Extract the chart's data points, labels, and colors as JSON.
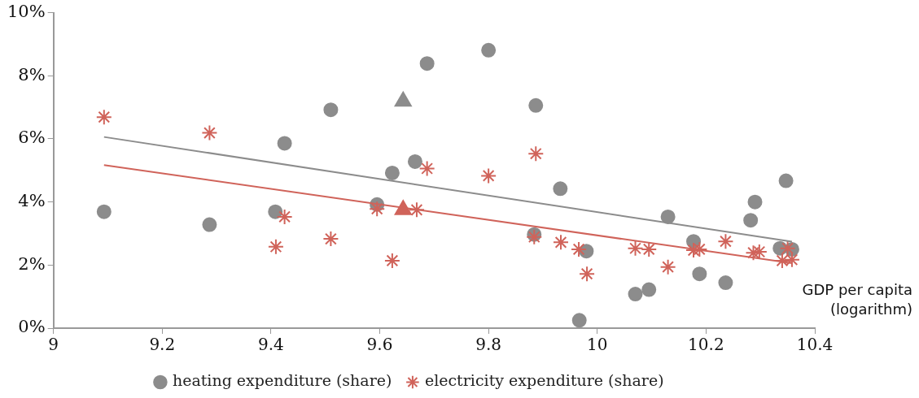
{
  "chart_data": {
    "type": "scatter",
    "xlabel": "GDP per capita (logarithm)",
    "xlim": [
      9,
      10.4
    ],
    "xticks": [
      9,
      9.2,
      9.4,
      9.6,
      9.8,
      10,
      10.2,
      10.4
    ],
    "ylim": [
      0,
      10
    ],
    "yticks": [
      {
        "value": 0,
        "label": "0%"
      },
      {
        "value": 2,
        "label": "2%"
      },
      {
        "value": 4,
        "label": "4%"
      },
      {
        "value": 6,
        "label": "6%"
      },
      {
        "value": 8,
        "label": "8%"
      },
      {
        "value": 10,
        "label": "10%"
      }
    ],
    "grid": false,
    "legend": "bottom",
    "series": [
      {
        "name": "heating expenditure (share)",
        "color": "#8c8c8c",
        "marker": "circle",
        "x": [
          9.093,
          9.287,
          9.408,
          9.425,
          9.51,
          9.623,
          9.665,
          9.687,
          9.595,
          9.8,
          9.887,
          9.884,
          9.932,
          9.98,
          9.967,
          10.07,
          10.095,
          10.13,
          10.177,
          10.188,
          10.236,
          10.282,
          10.29,
          10.347,
          10.336,
          10.358
        ],
        "values": [
          3.69,
          3.28,
          3.69,
          5.86,
          6.92,
          4.92,
          5.28,
          8.39,
          3.92,
          8.81,
          7.06,
          2.97,
          4.42,
          2.44,
          0.25,
          1.08,
          1.22,
          3.53,
          2.75,
          1.72,
          1.44,
          3.42,
          4.0,
          4.67,
          2.53,
          2.5
        ]
      },
      {
        "name": "electricity expenditure (share)",
        "color": "#d0635a",
        "marker": "cross",
        "x": [
          9.093,
          9.287,
          9.409,
          9.425,
          9.51,
          9.623,
          9.595,
          9.668,
          9.687,
          9.8,
          9.887,
          9.884,
          9.933,
          9.966,
          9.981,
          10.07,
          10.095,
          10.13,
          10.177,
          10.188,
          10.236,
          10.287,
          10.298,
          10.34,
          10.35,
          10.358
        ],
        "values": [
          6.69,
          6.19,
          2.58,
          3.53,
          2.83,
          2.14,
          3.78,
          3.75,
          5.06,
          4.83,
          5.53,
          2.89,
          2.72,
          2.5,
          1.72,
          2.53,
          2.5,
          1.94,
          2.47,
          2.5,
          2.75,
          2.39,
          2.42,
          2.14,
          2.53,
          2.17
        ]
      },
      {
        "color": "#8c8c8c",
        "marker": "triangle",
        "x": [
          9.643
        ],
        "values": [
          7.19
        ]
      },
      {
        "color": "#d0635a",
        "marker": "triangle",
        "x": [
          9.643
        ],
        "values": [
          3.75
        ]
      },
      {
        "type": "line",
        "color": "#8c8c8c",
        "marker": "none",
        "x": [
          9.093,
          10.358
        ],
        "values": [
          6.06,
          2.74
        ]
      },
      {
        "type": "line",
        "color": "#d0635a",
        "marker": "none",
        "x": [
          9.093,
          10.358
        ],
        "values": [
          5.17,
          2.06
        ]
      }
    ]
  }
}
